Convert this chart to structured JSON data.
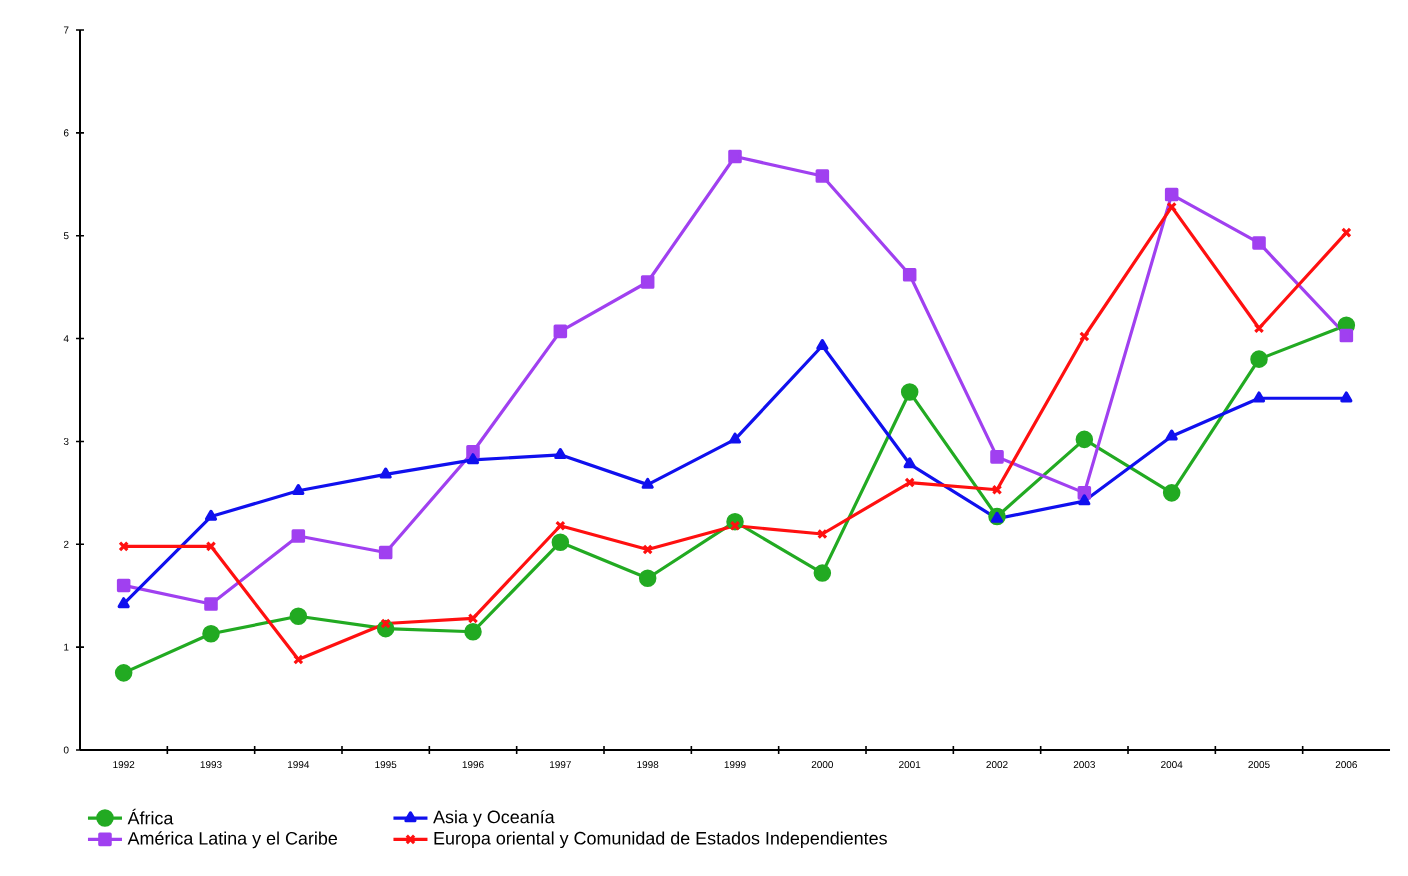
{
  "chart_data": {
    "type": "line",
    "categories": [
      "1992",
      "1993",
      "1994",
      "1995",
      "1996",
      "1997",
      "1998",
      "1999",
      "2000",
      "2001",
      "2002",
      "2003",
      "2004",
      "2005",
      "2006"
    ],
    "series": [
      {
        "name": "África",
        "color": "#22aa22",
        "marker": "circle",
        "values": [
          0.75,
          1.13,
          1.3,
          1.18,
          1.15,
          2.02,
          1.67,
          2.22,
          1.72,
          3.48,
          2.27,
          3.02,
          2.5,
          3.8,
          4.13
        ]
      },
      {
        "name": "América Latina y el Caribe",
        "color": "#a040f0",
        "marker": "square",
        "values": [
          1.6,
          1.42,
          2.08,
          1.92,
          2.9,
          4.07,
          4.55,
          5.77,
          5.58,
          4.62,
          2.85,
          2.5,
          5.4,
          4.93,
          4.03
        ]
      },
      {
        "name": "Asia y Oceanía",
        "color": "#1010ee",
        "marker": "triangle",
        "values": [
          1.42,
          2.27,
          2.52,
          2.68,
          2.82,
          2.87,
          2.58,
          3.02,
          3.93,
          2.78,
          2.25,
          2.42,
          3.05,
          3.42,
          3.42
        ]
      },
      {
        "name": "Europa oriental y Comunidad de Estados Independientes",
        "color": "#ff1010",
        "marker": "cross",
        "values": [
          1.98,
          1.98,
          0.88,
          1.23,
          1.28,
          2.18,
          1.95,
          2.18,
          2.1,
          2.6,
          2.53,
          4.02,
          5.28,
          4.1,
          5.03
        ]
      }
    ],
    "ylim": [
      0,
      7
    ],
    "yticks": [
      0,
      1,
      2,
      3,
      4,
      5,
      6,
      7
    ],
    "grid": false,
    "legend": "bottom",
    "line_style": "solid"
  }
}
